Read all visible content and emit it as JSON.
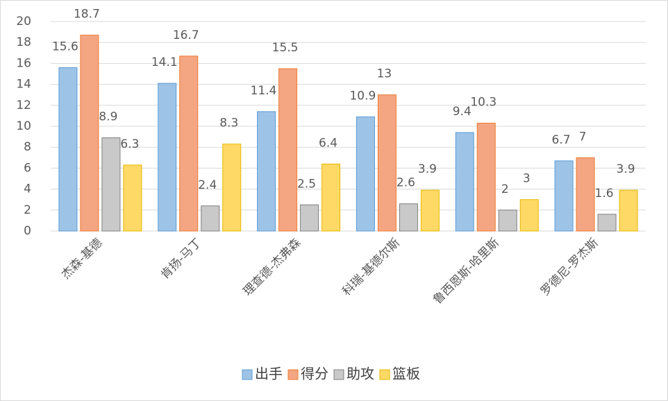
{
  "chart_data": {
    "type": "bar",
    "categories": [
      "杰森-基德",
      "肯扬-马丁",
      "理查德-杰弗森",
      "科瑞-基德尔斯",
      "鲁西恩斯-哈里斯",
      "罗德尼-罗杰斯"
    ],
    "series": [
      {
        "name": "出手",
        "color": "#9dc3e6",
        "values": [
          15.6,
          14.1,
          11.4,
          10.9,
          9.4,
          6.7
        ]
      },
      {
        "name": "得分",
        "color": "#f4a582",
        "values": [
          18.7,
          16.7,
          15.5,
          13,
          10.3,
          7
        ]
      },
      {
        "name": "助攻",
        "color": "#c9c9c9",
        "values": [
          8.9,
          2.4,
          2.5,
          2.6,
          2,
          1.6
        ]
      },
      {
        "name": "篮板",
        "color": "#ffd966",
        "values": [
          6.3,
          8.3,
          6.4,
          3.9,
          3,
          3.9
        ]
      }
    ],
    "ylim": [
      0,
      20
    ],
    "yticks": [
      0,
      2,
      4,
      6,
      8,
      10,
      12,
      14,
      16,
      18,
      20
    ],
    "grid": true,
    "legend": "bottom"
  }
}
